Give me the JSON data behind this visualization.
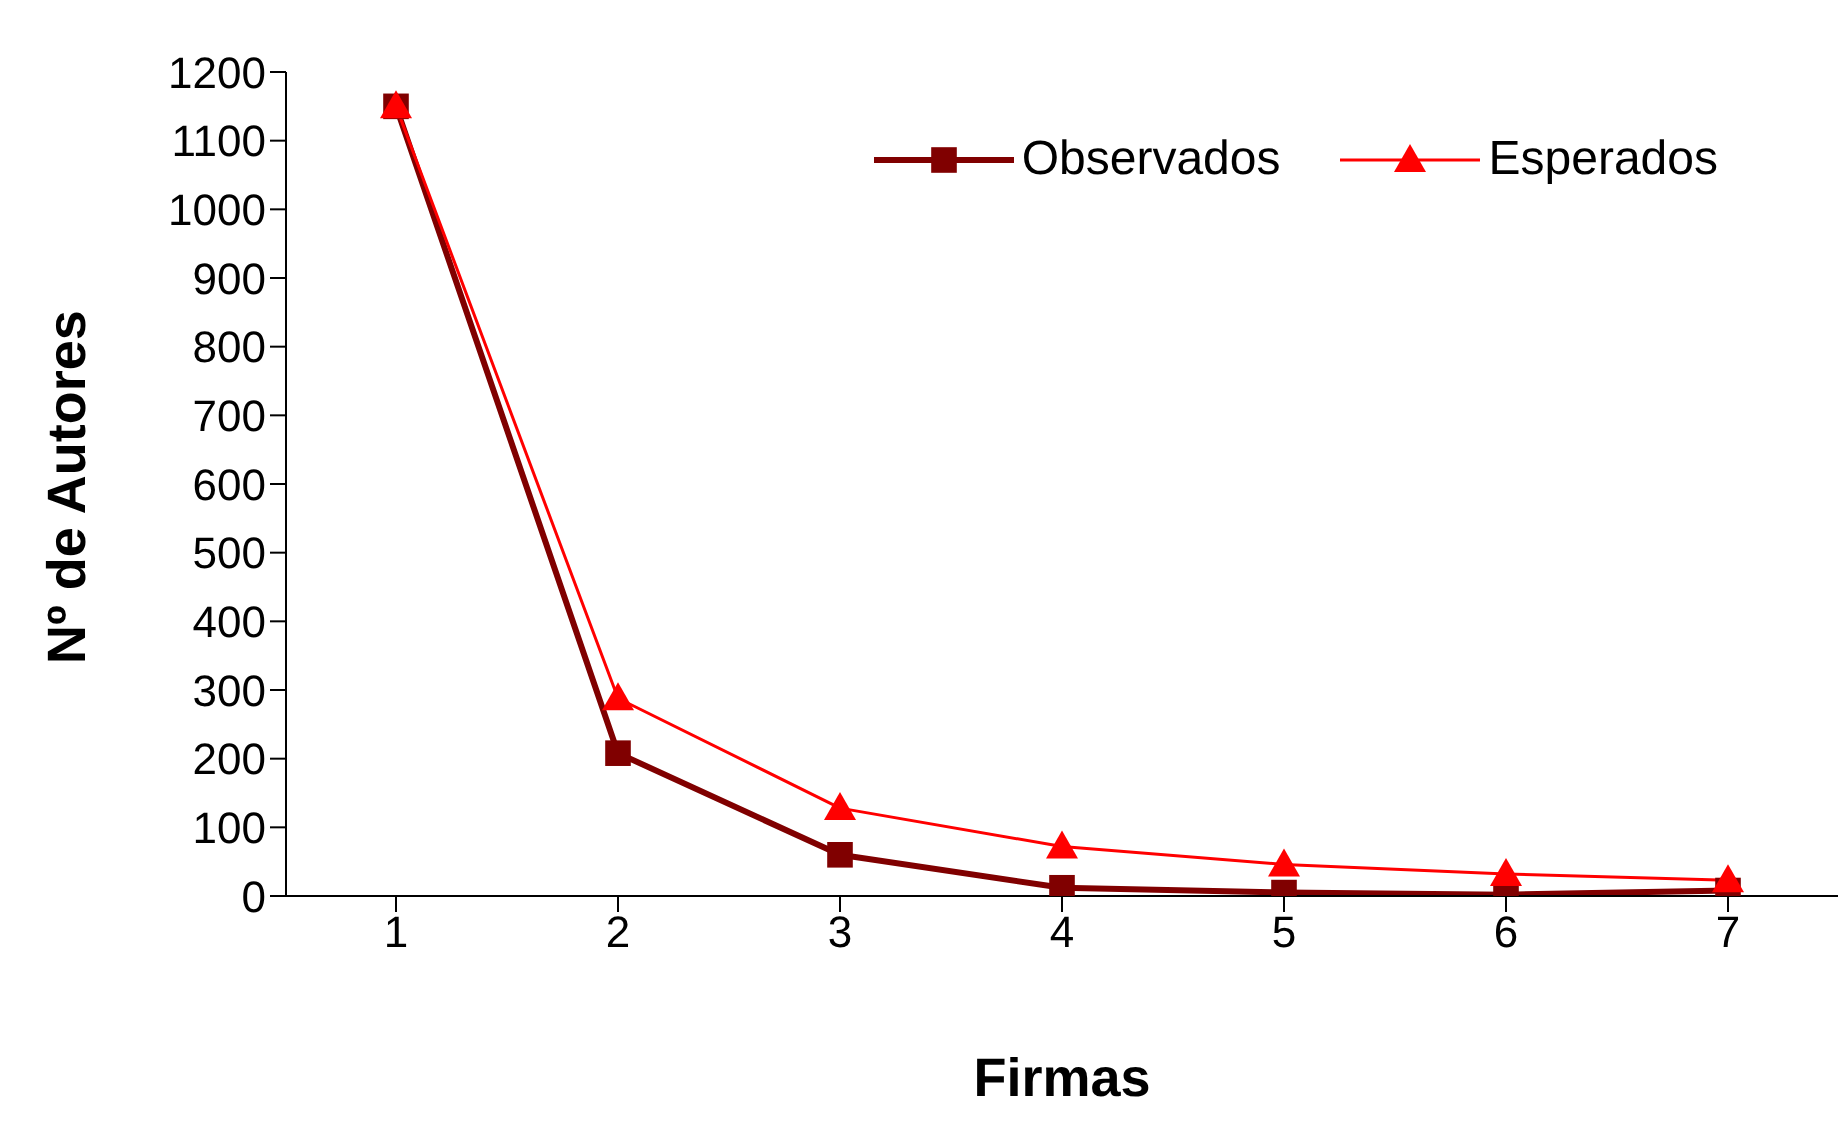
{
  "chart_data": {
    "type": "line",
    "xlabel": "Firmas",
    "ylabel": "Nº de Autores",
    "categories": [
      "1",
      "2",
      "3",
      "4",
      "5",
      "6",
      "7"
    ],
    "series": [
      {
        "name": "Observados",
        "color": "#800000",
        "values": [
          1150,
          208,
          60,
          12,
          5,
          2,
          8
        ],
        "marker": "square"
      },
      {
        "name": "Esperados",
        "color": "#ff0000",
        "values": [
          1150,
          288,
          128,
          72,
          46,
          32,
          23
        ],
        "marker": "triangle"
      }
    ],
    "ylim": [
      0,
      1200
    ],
    "yticks": [
      0,
      100,
      200,
      300,
      400,
      500,
      600,
      700,
      800,
      900,
      1000,
      1100,
      1200
    ],
    "grid": false,
    "legend": "top right",
    "line_style": "solid"
  }
}
